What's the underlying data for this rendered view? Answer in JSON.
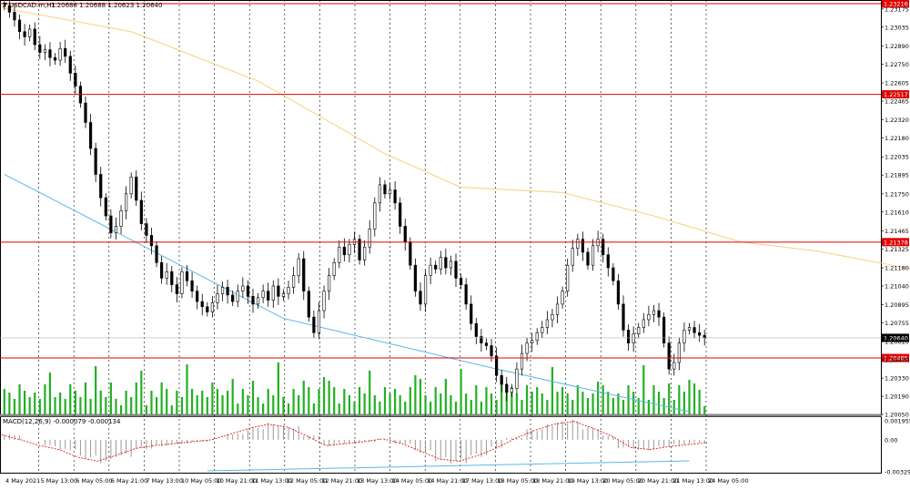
{
  "header": {
    "symbol_label": "USDCAD.m,H1",
    "ohlc_label": "1.20688 1.20688 1.20623 1.20640"
  },
  "macd_label": "MACD(12,26,9) -0.000079 -0.000134",
  "colors": {
    "candle": "#000000",
    "volume": "#22b022",
    "ma_line": "#f3d27a",
    "trend_line": "#5cb8e8",
    "level_line": "#e00000",
    "macd_hist": "#9a9a9a",
    "macd_signal": "#e00000",
    "price_badge": "#000000"
  },
  "chart_data": {
    "type": "candlestick",
    "price_ylim": [
      1.2005,
      1.23216
    ],
    "price_ticks": [
      "1.23175",
      "1.23035",
      "1.22890",
      "1.22750",
      "1.22605",
      "1.22465",
      "1.22320",
      "1.22180",
      "1.22035",
      "1.21895",
      "1.21750",
      "1.21610",
      "1.21465",
      "1.21325",
      "1.21180",
      "1.21040",
      "1.20895",
      "1.20755",
      "1.20610",
      "1.20470",
      "1.20330",
      "1.20190",
      "1.20050"
    ],
    "levels": [
      {
        "value": 1.23216,
        "label": "1.23216"
      },
      {
        "value": 1.22517,
        "label": "1.22517"
      },
      {
        "value": 1.21378,
        "label": "1.21378"
      },
      {
        "value": 1.20485,
        "label": "1.20485"
      }
    ],
    "current_price": {
      "value": 1.2064,
      "label": "1.20640"
    },
    "x_labels": [
      "4 May 2021",
      "5 May 13:00",
      "6 May 05:00",
      "6 May 21:00",
      "7 May 13:00",
      "10 May 05:00",
      "10 May 21:00",
      "11 May 13:00",
      "12 May 05:00",
      "12 May 21:00",
      "13 May 13:00",
      "14 May 05:00",
      "14 May 21:00",
      "17 May 13:00",
      "18 May 05:00",
      "18 May 21:00",
      "19 May 13:00",
      "20 May 05:00",
      "20 May 21:00",
      "21 May 13:00",
      "24 May 05:00"
    ],
    "closes": [
      1.232,
      1.2315,
      1.2309,
      1.23,
      1.2296,
      1.2302,
      1.229,
      1.2284,
      1.2286,
      1.228,
      1.2278,
      1.2287,
      1.2281,
      1.2268,
      1.2258,
      1.2245,
      1.223,
      1.221,
      1.219,
      1.2172,
      1.2158,
      1.2145,
      1.215,
      1.2162,
      1.2175,
      1.2188,
      1.217,
      1.2152,
      1.2143,
      1.2135,
      1.2122,
      1.211,
      1.2115,
      1.2105,
      1.2098,
      1.2115,
      1.2108,
      1.21,
      1.2092,
      1.2088,
      1.2084,
      1.2091,
      1.2098,
      1.2103,
      1.2097,
      1.2092,
      1.21,
      1.2104,
      1.2096,
      1.209,
      1.2095,
      1.21,
      1.2093,
      1.2104,
      1.2096,
      1.2098,
      1.2103,
      1.2112,
      1.2125,
      1.21,
      1.208,
      1.2068,
      1.2085,
      1.21,
      1.2112,
      1.2122,
      1.2134,
      1.2128,
      1.2136,
      1.214,
      1.2124,
      1.2134,
      1.2148,
      1.2168,
      1.2182,
      1.2175,
      1.2178,
      1.2168,
      1.215,
      1.2138,
      1.212,
      1.21,
      1.209,
      1.2112,
      1.212,
      1.2117,
      1.2126,
      1.2118,
      1.2123,
      1.211,
      1.2105,
      1.209,
      1.2075,
      1.2065,
      1.206,
      1.2058,
      1.205,
      1.2035,
      1.2028,
      1.2022,
      1.2025,
      1.204,
      1.2052,
      1.206,
      1.2062,
      1.2068,
      1.2072,
      1.2078,
      1.2082,
      1.209,
      1.21,
      1.212,
      1.2133,
      1.214,
      1.213,
      1.212,
      1.2135,
      1.214,
      1.2128,
      1.2118,
      1.2108,
      1.209,
      1.207,
      1.206,
      1.2067,
      1.2072,
      1.2078,
      1.2082,
      1.2085,
      1.208,
      1.206,
      1.204,
      1.2045,
      1.206,
      1.207,
      1.2072,
      1.2068,
      1.2066,
      1.2064
    ],
    "ma_points": [
      [
        0,
        1.2318
      ],
      [
        25,
        1.23
      ],
      [
        50,
        1.2262
      ],
      [
        75,
        1.2206
      ],
      [
        90,
        1.218
      ],
      [
        110,
        1.2176
      ],
      [
        128,
        1.2158
      ],
      [
        145,
        1.2138
      ],
      [
        160,
        1.2131
      ],
      [
        175,
        1.212
      ],
      [
        185,
        1.2112
      ],
      [
        194,
        1.2108
      ]
    ],
    "trend_line": [
      [
        0,
        1.219
      ],
      [
        55,
        1.2079
      ],
      [
        97,
        1.204
      ],
      [
        135,
        1.2007
      ]
    ],
    "macd": {
      "label_ticks": [
        "0.001955",
        "0.00",
        "-0.003291"
      ],
      "ylim": [
        -0.003291,
        0.001955
      ],
      "signal": [
        0.0005,
        0.0,
        -0.0006,
        -0.001,
        -0.0018,
        -0.0022,
        -0.0016,
        -0.0009,
        -0.0006,
        -0.0004,
        -0.0002,
        0.0,
        0.0006,
        0.0012,
        0.0016,
        0.0013,
        0.0004,
        -0.0006,
        -0.0004,
        -0.0002,
        0.0001,
        -0.0004,
        -0.0012,
        -0.002,
        -0.0022,
        -0.0016,
        -0.0008,
        0.0002,
        0.001,
        0.0016,
        0.0019,
        0.0012,
        0.0004,
        -0.0008,
        -0.001,
        -0.0007,
        -0.0005,
        -0.0003
      ]
    }
  }
}
